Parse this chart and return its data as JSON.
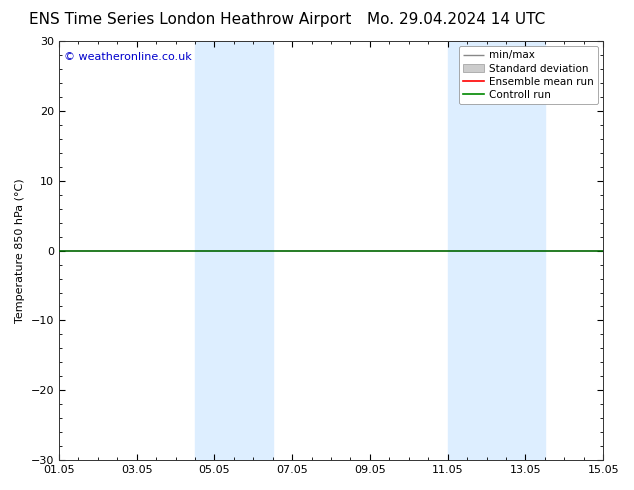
{
  "title_left": "ENS Time Series London Heathrow Airport",
  "title_right": "Mo. 29.04.2024 14 UTC",
  "ylabel": "Temperature 850 hPa (°C)",
  "ylim": [
    -30,
    30
  ],
  "yticks": [
    -30,
    -20,
    -10,
    0,
    10,
    20,
    30
  ],
  "copyright_text": "© weatheronline.co.uk",
  "xtick_labels": [
    "01.05",
    "03.05",
    "05.05",
    "07.05",
    "09.05",
    "11.05",
    "13.05",
    "15.05"
  ],
  "xtick_positions": [
    0,
    2,
    4,
    6,
    8,
    10,
    12,
    14
  ],
  "xlim": [
    0,
    14
  ],
  "shaded_regions": [
    {
      "xstart": 3.5,
      "xend": 4.5
    },
    {
      "xstart": 4.5,
      "xend": 5.5
    },
    {
      "xstart": 10.0,
      "xend": 11.0
    },
    {
      "xstart": 11.0,
      "xend": 12.5
    }
  ],
  "shaded_color": "#ddeeff",
  "zero_line_color": "#006600",
  "background_color": "#ffffff",
  "plot_bg_color": "#ffffff",
  "legend_entries": [
    {
      "label": "min/max",
      "color": "#888888"
    },
    {
      "label": "Standard deviation",
      "color": "#cccccc"
    },
    {
      "label": "Ensemble mean run",
      "color": "#ff0000"
    },
    {
      "label": "Controll run",
      "color": "#008800"
    }
  ],
  "title_fontsize": 11,
  "tick_label_fontsize": 8,
  "ylabel_fontsize": 8,
  "copyright_fontsize": 8,
  "legend_fontsize": 7.5
}
